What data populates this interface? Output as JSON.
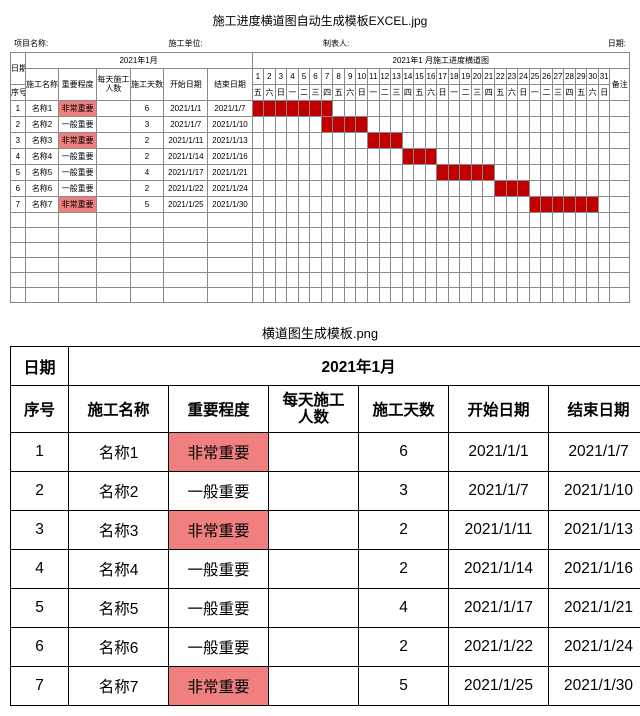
{
  "title1": "施工进度横道图自动生成模板EXCEL.jpg",
  "title2": "横道图生成模板.png",
  "info_labels": {
    "project": "项目名称:",
    "unit": "施工单位:",
    "maker": "制表人:",
    "date": "日期:"
  },
  "gantt": {
    "left_headers": {
      "date": "日期",
      "period": "2021年1月",
      "seq": "序号",
      "name": "施工名称",
      "importance": "重要程度",
      "people": "每天施工\n人数",
      "days": "施工天数",
      "start": "开始日期",
      "end": "结束日期"
    },
    "right_title": "2021年1 月施工进度横道图",
    "remark_header": "备注",
    "days_start": 1,
    "days_end": 31,
    "dow": [
      "五",
      "六",
      "日",
      "一",
      "二",
      "三",
      "四",
      "五",
      "六",
      "日",
      "一",
      "二",
      "三",
      "四",
      "五",
      "六",
      "日",
      "一",
      "二",
      "三",
      "四",
      "五",
      "六",
      "日",
      "一",
      "二",
      "三",
      "四",
      "五",
      "六",
      "日"
    ],
    "highlight_color": "#f08080",
    "bar_color": "#c00000",
    "rows": [
      {
        "seq": 1,
        "name": "名称1",
        "importance": "非常重要",
        "hi": true,
        "people": "",
        "days": 6,
        "start": "2021/1/1",
        "end": "2021/1/7",
        "bar_from": 1,
        "bar_to": 7
      },
      {
        "seq": 2,
        "name": "名称2",
        "importance": "一般重要",
        "hi": false,
        "people": "",
        "days": 3,
        "start": "2021/1/7",
        "end": "2021/1/10",
        "bar_from": 7,
        "bar_to": 10
      },
      {
        "seq": 3,
        "name": "名称3",
        "importance": "非常重要",
        "hi": true,
        "people": "",
        "days": 2,
        "start": "2021/1/11",
        "end": "2021/1/13",
        "bar_from": 11,
        "bar_to": 13
      },
      {
        "seq": 4,
        "name": "名称4",
        "importance": "一般重要",
        "hi": false,
        "people": "",
        "days": 2,
        "start": "2021/1/14",
        "end": "2021/1/16",
        "bar_from": 14,
        "bar_to": 16
      },
      {
        "seq": 5,
        "name": "名称5",
        "importance": "一般重要",
        "hi": false,
        "people": "",
        "days": 4,
        "start": "2021/1/17",
        "end": "2021/1/21",
        "bar_from": 17,
        "bar_to": 21
      },
      {
        "seq": 6,
        "name": "名称6",
        "importance": "一般重要",
        "hi": false,
        "people": "",
        "days": 2,
        "start": "2021/1/22",
        "end": "2021/1/24",
        "bar_from": 22,
        "bar_to": 24
      },
      {
        "seq": 7,
        "name": "名称7",
        "importance": "非常重要",
        "hi": true,
        "people": "",
        "days": 5,
        "start": "2021/1/25",
        "end": "2021/1/30",
        "bar_from": 25,
        "bar_to": 30
      }
    ],
    "blank_rows": 6
  },
  "summary": {
    "top_left": "日期",
    "top_span": "2021年1月",
    "headers": {
      "seq": "序号",
      "name": "施工名称",
      "importance": "重要程度",
      "people": "每天施工\n人数",
      "days": "施工天数",
      "start": "开始日期",
      "end": "结束日期"
    },
    "rows": [
      {
        "seq": 1,
        "name": "名称1",
        "importance": "非常重要",
        "hi": true,
        "people": "",
        "days": 6,
        "start": "2021/1/1",
        "end": "2021/1/7"
      },
      {
        "seq": 2,
        "name": "名称2",
        "importance": "一般重要",
        "hi": false,
        "people": "",
        "days": 3,
        "start": "2021/1/7",
        "end": "2021/1/10"
      },
      {
        "seq": 3,
        "name": "名称3",
        "importance": "非常重要",
        "hi": true,
        "people": "",
        "days": 2,
        "start": "2021/1/11",
        "end": "2021/1/13"
      },
      {
        "seq": 4,
        "name": "名称4",
        "importance": "一般重要",
        "hi": false,
        "people": "",
        "days": 2,
        "start": "2021/1/14",
        "end": "2021/1/16"
      },
      {
        "seq": 5,
        "name": "名称5",
        "importance": "一般重要",
        "hi": false,
        "people": "",
        "days": 4,
        "start": "2021/1/17",
        "end": "2021/1/21"
      },
      {
        "seq": 6,
        "name": "名称6",
        "importance": "一般重要",
        "hi": false,
        "people": "",
        "days": 2,
        "start": "2021/1/22",
        "end": "2021/1/24"
      },
      {
        "seq": 7,
        "name": "名称7",
        "importance": "非常重要",
        "hi": true,
        "people": "",
        "days": 5,
        "start": "2021/1/25",
        "end": "2021/1/30"
      }
    ]
  }
}
